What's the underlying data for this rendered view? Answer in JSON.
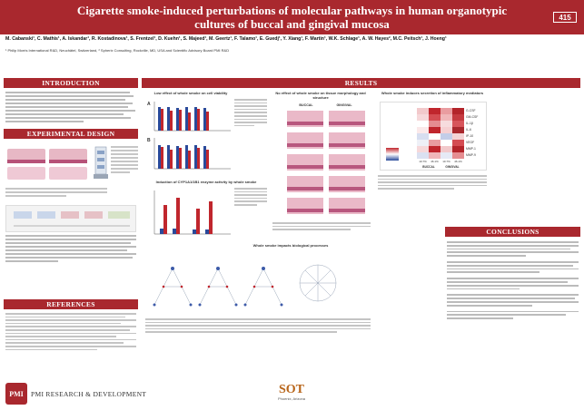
{
  "header": {
    "title_line1": "Cigarette smoke-induced perturbations of molecular pathways in human organotypic",
    "title_line2": "cultures of buccal and gingival mucosa",
    "poster_number": "415",
    "authors": "M. Cabanski¹, C. Mathis¹, A. Iskandar¹, R. Kostadinova¹, S. Frentzel¹, D. Kuehn¹, S. Majeed¹, M. Geertz¹, F. Talamo¹, E. Guedj¹, Y. Xiang¹, F. Martin¹, W.K. Schlage¹, A. W. Hayes², M.C. Peitsch¹, J. Hoeng¹",
    "affiliations": "¹ Philip Morris International R&D, Neuchâtel, Switzerland, ² Spherix Consulting, Rockville, MD, USA and Scientific Advisory Board PMI R&D"
  },
  "sections": {
    "introduction": "INTRODUCTION",
    "experimental_design": "EXPERIMENTAL DESIGN",
    "references": "REFERENCES",
    "results": "RESULTS",
    "conclusions": "CONCLUSIONS"
  },
  "results": {
    "panel_a_title": "Low effect of whole smoke on cell viability",
    "panel_b_title": "Induction of CYP1A1/1B1 enzyme activity by whole smoke",
    "panel_c_title": "No effect of whole smoke on tissue morphology and structure",
    "panel_d_title": "Whole smoke induces secretion of inflammatory mediators",
    "panel_e_title": "Whole smoke impacts biological processes",
    "buccal_label": "BUCCAL",
    "gingival_label": "GINGIVAL",
    "heatmap_rows": [
      "G-CSF",
      "GM-CSF",
      "IL-1β",
      "IL-6",
      "IP-10",
      "VEGF",
      "MMP-1",
      "MMP-9"
    ],
    "heatmap_cols": [
      "10.7%",
      "46.1%",
      "10.7%",
      "46.1%"
    ],
    "heatmap_groups": [
      "BUCCAL",
      "GINGIVAL"
    ]
  },
  "footer": {
    "logo_text": "PMI RESEARCH & DEVELOPMENT",
    "logo_mark": "PMI",
    "sot_text": "SOT",
    "sot_sub": "Phoenix, Arizona"
  },
  "colors": {
    "brand_red": "#a9282e",
    "bar_red": "#c0262d",
    "bar_blue": "#2a4a9a"
  }
}
